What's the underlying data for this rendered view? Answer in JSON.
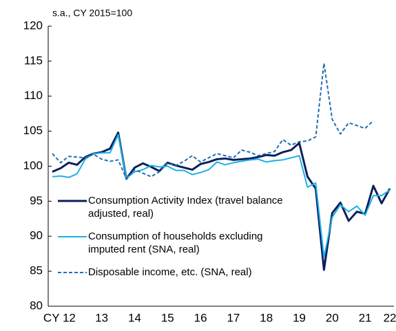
{
  "chart_data": {
    "type": "line",
    "subtitle": "s.a., CY 2015=100",
    "categories": [
      null,
      null,
      "CY 12",
      null,
      null,
      null,
      "13",
      null,
      null,
      null,
      "14",
      null,
      null,
      null,
      "15",
      null,
      null,
      null,
      "16",
      null,
      null,
      null,
      "17",
      null,
      null,
      null,
      "18",
      null,
      null,
      null,
      "19",
      null,
      null,
      null,
      "20",
      null,
      null,
      null,
      "21",
      null,
      null,
      "22"
    ],
    "series": [
      {
        "name": "Consumption Activity Index (travel balance adjusted, real)",
        "color": "#0d1f5c",
        "style": "solid",
        "values": [
          99.2,
          99.7,
          100.5,
          100.2,
          101.3,
          101.8,
          102.0,
          102.5,
          104.8,
          98.2,
          99.8,
          100.4,
          99.9,
          99.3,
          100.5,
          100.1,
          99.8,
          99.5,
          100.3,
          100.6,
          101.0,
          101.1,
          100.9,
          101.0,
          101.1,
          101.3,
          101.6,
          101.5,
          102.0,
          102.3,
          103.3,
          98.5,
          96.8,
          85.2,
          93.3,
          94.8,
          92.2,
          93.5,
          93.2,
          97.2,
          94.7,
          96.8
        ]
      },
      {
        "name": "Consumption of households excluding imputed rent (SNA, real)",
        "color": "#1ab0e8",
        "style": "solid",
        "values": [
          98.5,
          98.6,
          98.4,
          98.9,
          101.0,
          101.8,
          101.9,
          101.9,
          104.5,
          98.3,
          99.2,
          99.5,
          100.1,
          99.9,
          100.0,
          99.4,
          99.4,
          98.8,
          99.1,
          99.5,
          100.6,
          100.2,
          100.5,
          100.7,
          100.9,
          101.0,
          100.6,
          100.8,
          100.9,
          101.2,
          101.5,
          97.0,
          97.6,
          87.0,
          92.7,
          94.5,
          93.5,
          94.3,
          93.0,
          95.8,
          95.8,
          96.6
        ]
      },
      {
        "name": "Disposable income, etc. (SNA, real)",
        "color": "#1f6fb5",
        "style": "dashed",
        "values": [
          101.8,
          100.5,
          101.4,
          101.3,
          101.2,
          101.7,
          101.0,
          100.7,
          100.9,
          98.2,
          99.5,
          99.0,
          98.5,
          99.2,
          100.4,
          100.1,
          100.7,
          101.5,
          100.6,
          101.2,
          101.8,
          101.5,
          101.2,
          102.3,
          102.0,
          101.5,
          101.8,
          102.1,
          103.8,
          103.0,
          103.5,
          103.6,
          104.2,
          114.7,
          106.7,
          104.6,
          106.2,
          105.8,
          105.4,
          106.5,
          null,
          null
        ]
      }
    ],
    "ylim": [
      80,
      120
    ],
    "yticks": [
      80,
      85,
      90,
      95,
      100,
      105,
      110,
      115,
      120
    ],
    "grid": false
  }
}
